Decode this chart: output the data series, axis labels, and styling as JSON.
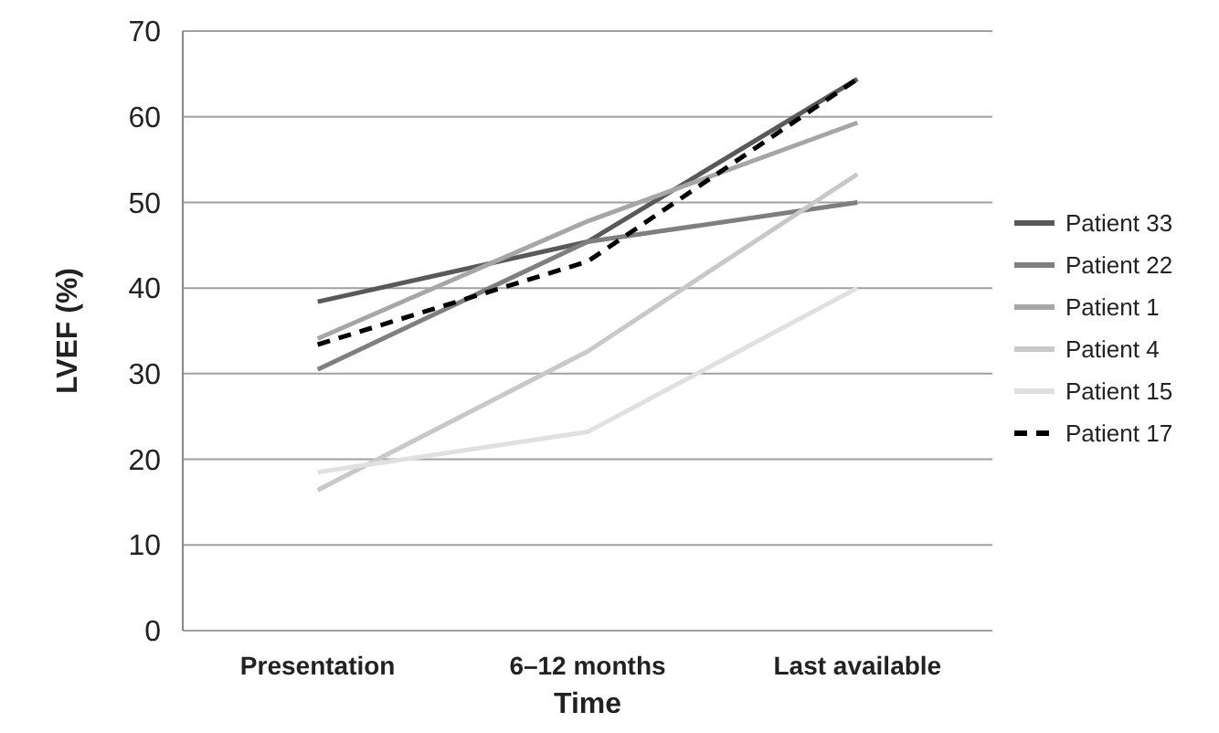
{
  "chart_data": {
    "type": "line",
    "xlabel": "Time",
    "ylabel": "LVEF (%)",
    "categories": [
      "Presentation",
      "6–12 months",
      "Last available"
    ],
    "series": [
      {
        "name": "Patient 33",
        "color": "#595959",
        "values": [
          38.4,
          45.4,
          64.4
        ]
      },
      {
        "name": "Patient 22",
        "color": "#7f7f7f",
        "values": [
          30.5,
          45.4,
          50
        ]
      },
      {
        "name": "Patient 1",
        "color": "#a6a6a6",
        "values": [
          34.1,
          47.8,
          59.3
        ]
      },
      {
        "name": "Patient 4",
        "color": "#c8c8c8",
        "values": [
          16.4,
          32.6,
          53.3
        ]
      },
      {
        "name": "Patient 15",
        "color": "#e0e0e0",
        "values": [
          18.5,
          23.2,
          40
        ]
      },
      {
        "name": "Patient 17",
        "color": "#000000",
        "values": [
          33.4,
          43.1,
          64.4
        ],
        "line_style": "dashed"
      }
    ],
    "ylim": [
      0,
      70
    ],
    "yticks": [
      0,
      10,
      20,
      30,
      40,
      50,
      60,
      70
    ],
    "grid": "y",
    "legend": "right",
    "marker": "none"
  }
}
